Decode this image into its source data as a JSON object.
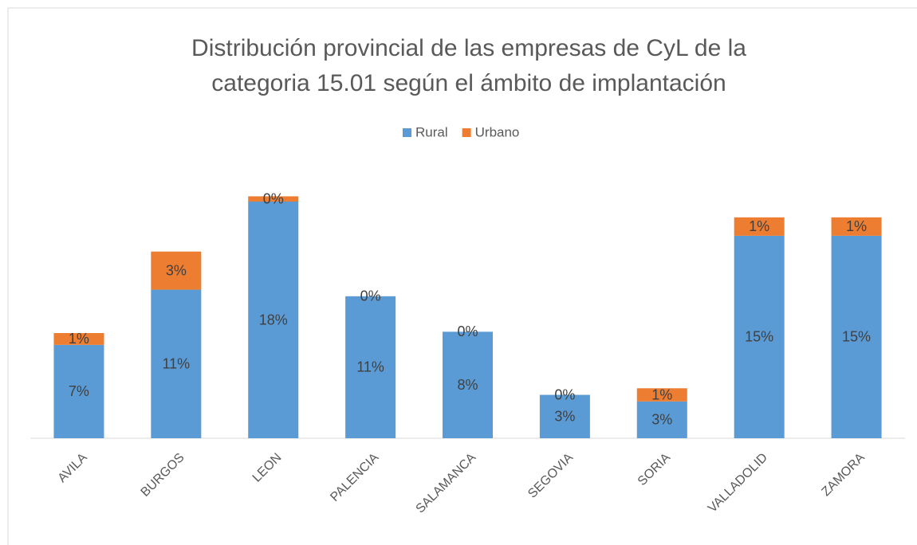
{
  "chart_data": {
    "type": "stacked_bar",
    "title": [
      "Distribución provincial de las empresas de CyL de la",
      "categoria 15.01 según el ámbito de implantación"
    ],
    "categories": [
      "AVILA",
      "BURGOS",
      "LEON",
      "PALENCIA",
      "SALAMANCA",
      "SEGOVIA",
      "SORIA",
      "VALLADOLID",
      "ZAMORA"
    ],
    "series": [
      {
        "name": "Rural",
        "color": "#5b9bd5",
        "values": [
          7.1,
          11.3,
          18.0,
          10.8,
          8.1,
          3.3,
          2.8,
          15.4,
          15.4
        ],
        "value_labels": [
          "7%",
          "11%",
          "18%",
          "11%",
          "8%",
          "3%",
          "3%",
          "15%",
          "15%"
        ]
      },
      {
        "name": "Urbano",
        "color": "#ed7d31",
        "values": [
          0.9,
          2.9,
          0.4,
          0,
          0,
          0,
          1.0,
          1.4,
          1.4
        ],
        "value_labels": [
          "1%",
          "3%",
          "0%",
          "0%",
          "0%",
          "0%",
          "1%",
          "1%",
          "1%"
        ]
      }
    ],
    "legend": "top"
  }
}
